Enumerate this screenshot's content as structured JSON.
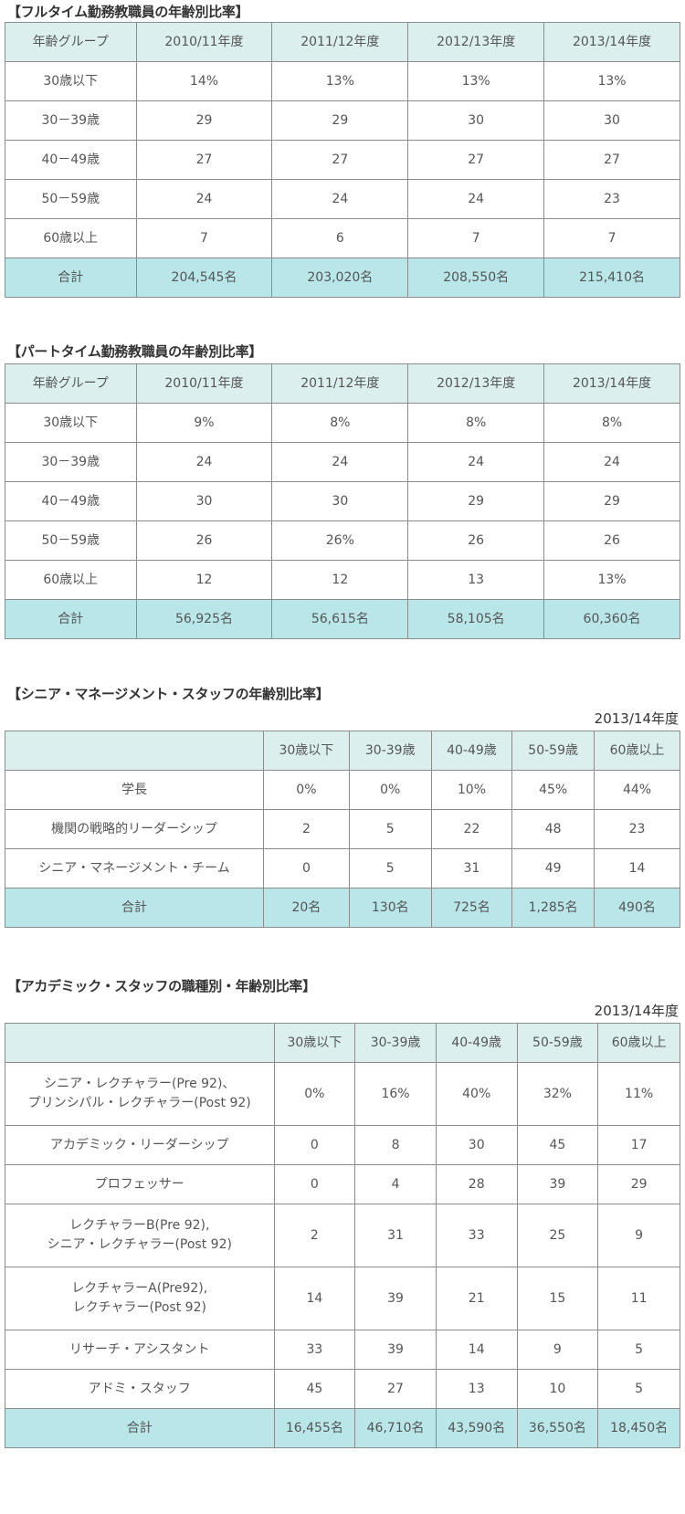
{
  "sections": [
    {
      "title": "【フルタイム勤務教職員の年齢別比率】",
      "header": [
        "年齢グループ",
        "2010/11年度",
        "2011/12年度",
        "2012/13年度",
        "2013/14年度"
      ],
      "rows": [
        [
          "30歳以下",
          "14%",
          "13%",
          "13%",
          "13%"
        ],
        [
          "30－39歳",
          "29",
          "29",
          "30",
          "30"
        ],
        [
          "40－49歳",
          "27",
          "27",
          "27",
          "27"
        ],
        [
          "50－59歳",
          "24",
          "24",
          "24",
          "23"
        ],
        [
          "60歳以上",
          "7",
          "6",
          "7",
          "7"
        ]
      ],
      "total": [
        "合計",
        "204,545名",
        "203,020名",
        "208,550名",
        "215,410名"
      ]
    },
    {
      "title": "【パートタイム勤務教職員の年齢別比率】",
      "header": [
        "年齢グループ",
        "2010/11年度",
        "2011/12年度",
        "2012/13年度",
        "2013/14年度"
      ],
      "rows": [
        [
          "30歳以下",
          "9%",
          "8%",
          "8%",
          "8%"
        ],
        [
          "30－39歳",
          "24",
          "24",
          "24",
          "24"
        ],
        [
          "40－49歳",
          "30",
          "30",
          "29",
          "29"
        ],
        [
          "50－59歳",
          "26",
          "26%",
          "26",
          "26"
        ],
        [
          "60歳以上",
          "12",
          "12",
          "13",
          "13%"
        ]
      ],
      "total": [
        "合計",
        "56,925名",
        "56,615名",
        "58,105名",
        "60,360名"
      ]
    },
    {
      "title": "【シニア・マネージメント・スタッフの年齢別比率】",
      "year": "2013/14年度",
      "header": [
        "",
        "30歳以下",
        "30-39歳",
        "40-49歳",
        "50-59歳",
        "60歳以上"
      ],
      "rows": [
        [
          "学長",
          "0%",
          "0%",
          "10%",
          "45%",
          "44%"
        ],
        [
          "機関の戦略的リーダーシップ",
          "2",
          "5",
          "22",
          "48",
          "23"
        ],
        [
          "シニア・マネージメント・チーム",
          "0",
          "5",
          "31",
          "49",
          "14"
        ]
      ],
      "total": [
        "合計",
        "20名",
        "130名",
        "725名",
        "1,285名",
        "490名"
      ]
    },
    {
      "title": "【アカデミック・スタッフの職種別・年齢別比率】",
      "year": "2013/14年度",
      "header": [
        "",
        "30歳以下",
        "30-39歳",
        "40-49歳",
        "50-59歳",
        "60歳以上"
      ],
      "rows": [
        [
          [
            "シニア・レクチャラー(Pre 92)、",
            "プリンシパル・レクチャラー(Post 92)"
          ],
          "0%",
          "16%",
          "40%",
          "32%",
          "11%"
        ],
        [
          [
            "アカデミック・リーダーシップ"
          ],
          "0",
          "8",
          "30",
          "45",
          "17"
        ],
        [
          [
            "プロフェッサー"
          ],
          "0",
          "4",
          "28",
          "39",
          "29"
        ],
        [
          [
            "レクチャラーB(Pre 92),",
            "シニア・レクチャラー(Post 92)"
          ],
          "2",
          "31",
          "33",
          "25",
          "9"
        ],
        [
          [
            "レクチャラーA(Pre92),",
            "レクチャラー(Post 92)"
          ],
          "14",
          "39",
          "21",
          "15",
          "11"
        ],
        [
          [
            "リサーチ・アシスタント"
          ],
          "33",
          "39",
          "14",
          "9",
          "5"
        ],
        [
          [
            "アドミ・スタッフ"
          ],
          "45",
          "27",
          "13",
          "10",
          "5"
        ]
      ],
      "total": [
        "合計",
        "16,455名",
        "46,710名",
        "43,590名",
        "36,550名",
        "18,450名"
      ]
    }
  ]
}
